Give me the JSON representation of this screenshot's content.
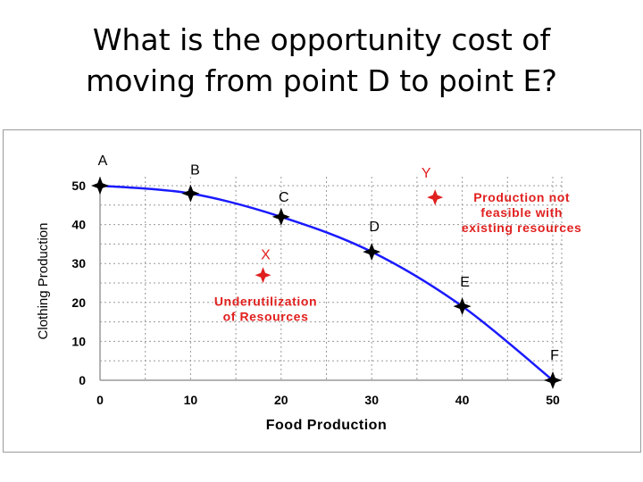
{
  "slide": {
    "title_line1": "What is the opportunity cost of",
    "title_line2": "moving from point D to point E?"
  },
  "colors": {
    "curve": "#1a1aff",
    "grid": "#9a9a9a",
    "point_marker": "#000000",
    "annotation": "#e0201e"
  },
  "chart_data": {
    "type": "line",
    "xlabel": "Food Production",
    "ylabel": "Clothing Production",
    "xlim": [
      0,
      50
    ],
    "ylim": [
      0,
      50
    ],
    "x_ticks": [
      "0",
      "10",
      "20",
      "30",
      "40",
      "50"
    ],
    "y_ticks": [
      "0",
      "10",
      "20",
      "30",
      "40",
      "50"
    ],
    "grid": true,
    "series": [
      {
        "points": [
          {
            "label": "A",
            "x": 0,
            "y": 50
          },
          {
            "label": "B",
            "x": 10,
            "y": 48
          },
          {
            "label": "C",
            "x": 20,
            "y": 42
          },
          {
            "label": "D",
            "x": 30,
            "y": 33
          },
          {
            "label": "E",
            "x": 40,
            "y": 19
          },
          {
            "label": "F",
            "x": 50,
            "y": 0
          }
        ]
      }
    ],
    "annotations": [
      {
        "label": "X",
        "x": 18,
        "y": 27,
        "text_lines": [
          "Underutilization",
          "of Resources"
        ]
      },
      {
        "label": "Y",
        "x": 37,
        "y": 47,
        "text_lines": [
          "Production not",
          "feasible with",
          "existing resources"
        ]
      }
    ]
  }
}
